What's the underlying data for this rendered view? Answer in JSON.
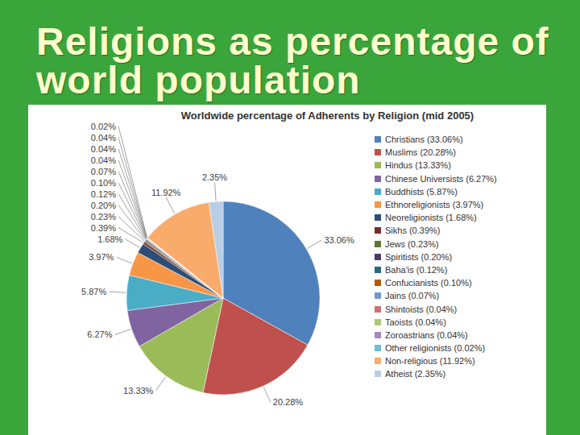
{
  "heading": "Religions as percentage of world population",
  "chart_data": {
    "type": "pie",
    "title": "Worldwide percentage of Adherents by Religion (mid 2005)",
    "categories": [
      "Christians (33.06%)",
      "Muslims (20.28%)",
      "Hindus (13.33%)",
      "Chinese Universists (6.27%)",
      "Buddhists (5.87%)",
      "Ethnoreligionists (3.97%)",
      "Neoreligionists (1.68%)",
      "Sikhs (0.39%)",
      "Jews (0.23%)",
      "Spiritists (0.20%)",
      "Baha'is (0.12%)",
      "Confucianists (0.10%)",
      "Jains (0.07%)",
      "Shintoists (0.04%)",
      "Taoists (0.04%)",
      "Zoroastrians (0.04%)",
      "Other religionists (0.02%)",
      "Non-religious (11.92%)",
      "Atheist (2.35%)"
    ],
    "values": [
      33.06,
      20.28,
      13.33,
      6.27,
      5.87,
      3.97,
      1.68,
      0.39,
      0.23,
      0.2,
      0.12,
      0.1,
      0.07,
      0.04,
      0.04,
      0.04,
      0.02,
      11.92,
      2.35
    ],
    "value_labels": [
      "33.06%",
      "20.28%",
      "13.33%",
      "6.27%",
      "5.87%",
      "3.97%",
      "1.68%",
      "0.39%",
      "0.23%",
      "0.20%",
      "0.12%",
      "0.10%",
      "0.07%",
      "0.04%",
      "0.04%",
      "0.04%",
      "0.02%",
      "11.92%",
      "2.35%"
    ],
    "colors": [
      "#4F81BD",
      "#C0504D",
      "#9BBB59",
      "#8064A2",
      "#4BACC6",
      "#F79646",
      "#2C4D75",
      "#772C2A",
      "#5F7530",
      "#4D3B62",
      "#276A7C",
      "#B65708",
      "#729ACA",
      "#CD7371",
      "#AFC97A",
      "#A18CBA",
      "#6FBDD1",
      "#F9AB6B",
      "#B9CDE5"
    ],
    "legend": "right",
    "data_labels": true
  }
}
